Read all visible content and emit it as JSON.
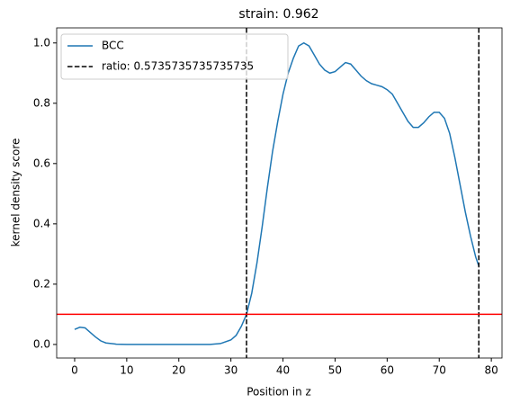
{
  "chart_data": {
    "type": "line",
    "title": "strain: 0.962",
    "xlabel": "Position in z",
    "ylabel": "kernel density score",
    "x": [
      0,
      1,
      2,
      3,
      4,
      5,
      6,
      8,
      10,
      12,
      14,
      16,
      18,
      20,
      22,
      24,
      26,
      28,
      30,
      31,
      32,
      33,
      34,
      35,
      36,
      37,
      38,
      39,
      40,
      41,
      42,
      43,
      44,
      45,
      46,
      47,
      48,
      49,
      50,
      51,
      52,
      53,
      54,
      55,
      56,
      57,
      58,
      59,
      60,
      61,
      62,
      63,
      64,
      65,
      66,
      67,
      68,
      69,
      70,
      71,
      72,
      73,
      74,
      75,
      76,
      77,
      77.6
    ],
    "series": [
      {
        "name": "BCC",
        "color": "#1f77b4",
        "values": [
          0.05,
          0.057,
          0.055,
          0.04,
          0.025,
          0.012,
          0.005,
          0.001,
          0,
          0,
          0,
          0,
          0,
          0,
          0,
          0,
          0,
          0.003,
          0.015,
          0.03,
          0.06,
          0.1,
          0.17,
          0.27,
          0.39,
          0.52,
          0.64,
          0.74,
          0.83,
          0.9,
          0.95,
          0.99,
          1.0,
          0.99,
          0.96,
          0.93,
          0.91,
          0.9,
          0.905,
          0.92,
          0.935,
          0.93,
          0.91,
          0.89,
          0.875,
          0.865,
          0.86,
          0.855,
          0.845,
          0.83,
          0.8,
          0.77,
          0.74,
          0.72,
          0.72,
          0.735,
          0.755,
          0.77,
          0.77,
          0.75,
          0.7,
          0.62,
          0.53,
          0.44,
          0.36,
          0.29,
          0.26
        ]
      }
    ],
    "vlines": {
      "name": "ratio: 0.5735735735735735",
      "color": "#000000",
      "values": [
        33,
        77.6
      ]
    },
    "hline": {
      "value": 0.1,
      "color": "#ff0000"
    },
    "xlim": [
      -3.45,
      82.05
    ],
    "ylim": [
      -0.045,
      1.05
    ],
    "xticks": [
      0,
      10,
      20,
      30,
      40,
      50,
      60,
      70,
      80
    ],
    "yticks": [
      {
        "value": 0,
        "label": "0.0"
      },
      {
        "value": 0.2,
        "label": "0.2"
      },
      {
        "value": 0.4,
        "label": "0.4"
      },
      {
        "value": 0.6,
        "label": "0.6"
      },
      {
        "value": 0.8,
        "label": "0.8"
      },
      {
        "value": 1,
        "label": "1.0"
      }
    ],
    "legend": "upper left"
  }
}
